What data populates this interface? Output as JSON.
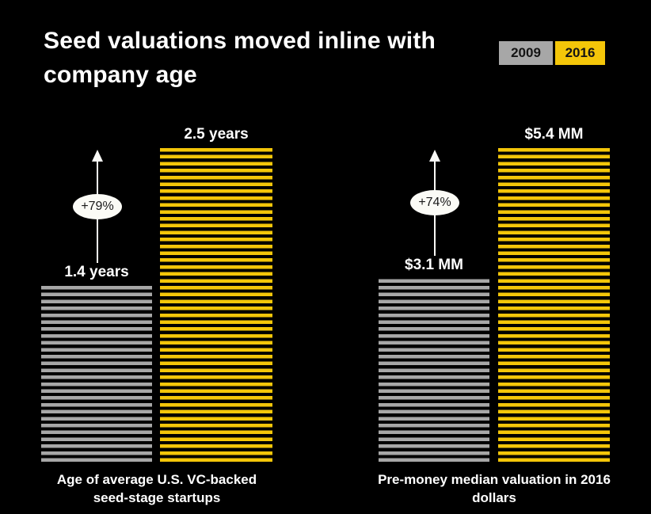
{
  "title": "Seed valuations moved inline with company age",
  "title_lines": [
    "Seed valuations moved inline with",
    "company age"
  ],
  "legend": {
    "items": [
      {
        "label": "2009",
        "color": "#a7a7a7"
      },
      {
        "label": "2016",
        "color": "#f4c609"
      }
    ]
  },
  "colors": {
    "background": "#000000",
    "title_text": "#ffffff",
    "label_text": "#ffffff",
    "series_2009": "#a7a7a7",
    "series_2016": "#f4c609",
    "legend_text": "#141414",
    "arrow": "#fafaf7",
    "badge_background": "#fbfbf6",
    "badge_text": "#1a1a1a"
  },
  "chart_data": [
    {
      "type": "bar",
      "categories": [
        "2009",
        "2016"
      ],
      "values": [
        1.4,
        2.5
      ],
      "unit": "years",
      "value_labels": [
        "1.4 years",
        "2.5 years"
      ],
      "change_label": "+79%",
      "xlabel": "Age of average U.S. VC-backed seed-stage startups",
      "xlabel_lines": [
        "Age of average U.S. VC-backed",
        "seed-stage startups"
      ],
      "ylim": [
        0,
        2.5
      ],
      "grid": false,
      "legend_position": "top-right"
    },
    {
      "type": "bar",
      "categories": [
        "2009",
        "2016"
      ],
      "values": [
        3.1,
        5.4
      ],
      "unit": "$ MM",
      "value_labels": [
        "$3.1 MM",
        "$5.4 MM"
      ],
      "change_label": "+74%",
      "xlabel": "Pre-money median valuation in 2016 dollars",
      "xlabel_lines": [
        "Pre-money median valuation in 2016",
        "dollars"
      ],
      "ylim": [
        0,
        5.4
      ],
      "grid": false,
      "legend_position": "top-right"
    }
  ]
}
